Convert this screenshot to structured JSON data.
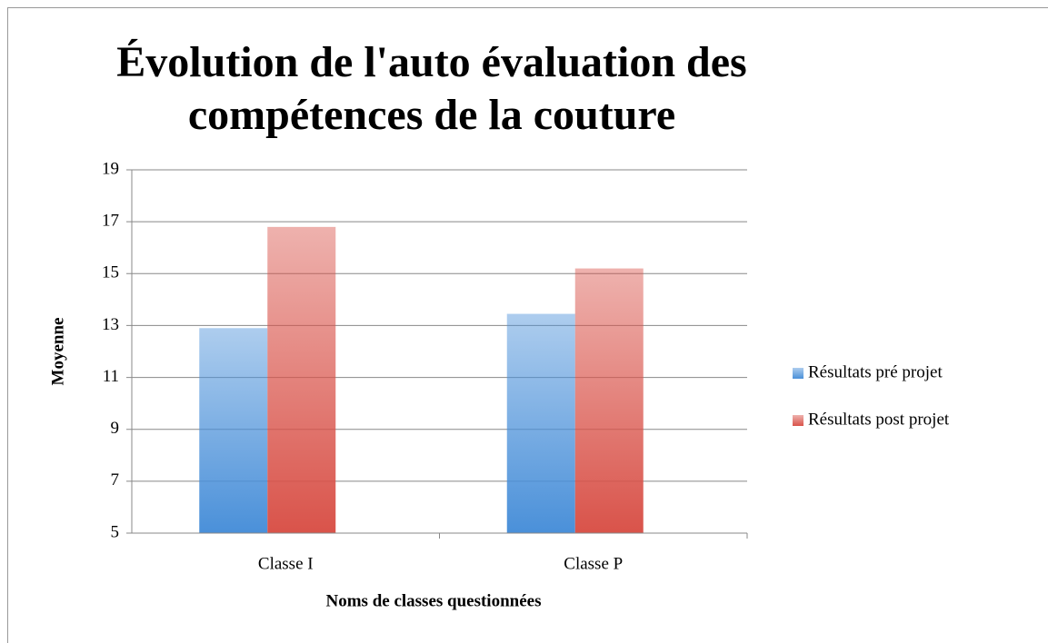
{
  "chart_data": {
    "type": "bar",
    "title": "Évolution de l'auto évaluation des compétences de la couture",
    "x_label": "Noms de classes questionnées",
    "y_label": "Moyenne",
    "categories": [
      "Classe I",
      "Classe P"
    ],
    "series": [
      {
        "name": "Résultats pré projet",
        "color": "#4a90d9",
        "values": [
          12.9,
          13.45
        ]
      },
      {
        "name": "Résultats post projet",
        "color": "#d9534a",
        "values": [
          16.8,
          15.2
        ]
      }
    ],
    "ylim": [
      5,
      19
    ],
    "yticks": [
      5,
      7,
      9,
      11,
      13,
      15,
      17,
      19
    ],
    "grid": true,
    "legend": "right"
  }
}
